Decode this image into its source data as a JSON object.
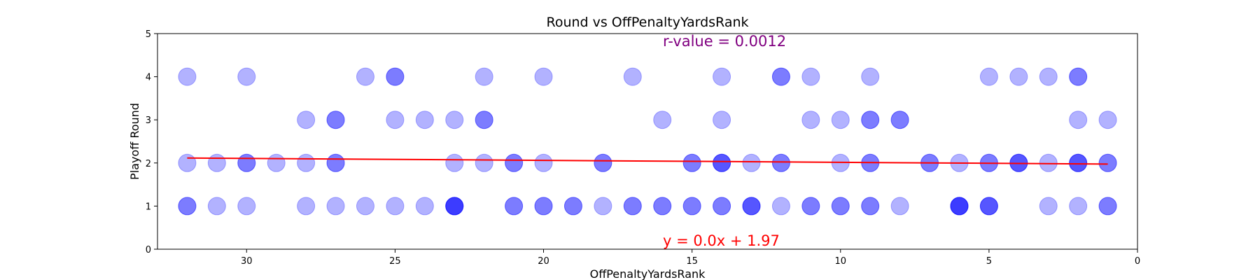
{
  "chart_data": {
    "type": "scatter",
    "title": "Round vs OffPenaltyYardsRank",
    "xlabel": "OffPenaltyYardsRank",
    "ylabel": "Playoff Round",
    "xlim": [
      33,
      0
    ],
    "ylim": [
      0,
      5
    ],
    "x_inverted": true,
    "xticks": [
      30,
      25,
      20,
      15,
      10,
      5,
      0
    ],
    "yticks": [
      0,
      1,
      2,
      3,
      4,
      5
    ],
    "grid": false,
    "point_color": "#0000ff",
    "line_color": "#ff0000",
    "points": [
      {
        "x": 32,
        "y": 4
      },
      {
        "x": 30,
        "y": 4
      },
      {
        "x": 26,
        "y": 4
      },
      {
        "x": 25,
        "y": 4
      },
      {
        "x": 25,
        "y": 4
      },
      {
        "x": 22,
        "y": 4
      },
      {
        "x": 20,
        "y": 4
      },
      {
        "x": 17,
        "y": 4
      },
      {
        "x": 14,
        "y": 4
      },
      {
        "x": 12,
        "y": 4
      },
      {
        "x": 12,
        "y": 4
      },
      {
        "x": 11,
        "y": 4
      },
      {
        "x": 9,
        "y": 4
      },
      {
        "x": 5,
        "y": 4
      },
      {
        "x": 4,
        "y": 4
      },
      {
        "x": 3,
        "y": 4
      },
      {
        "x": 2,
        "y": 4
      },
      {
        "x": 2,
        "y": 4
      },
      {
        "x": 28,
        "y": 3
      },
      {
        "x": 27,
        "y": 3
      },
      {
        "x": 27,
        "y": 3
      },
      {
        "x": 25,
        "y": 3
      },
      {
        "x": 24,
        "y": 3
      },
      {
        "x": 23,
        "y": 3
      },
      {
        "x": 22,
        "y": 3
      },
      {
        "x": 22,
        "y": 3
      },
      {
        "x": 16,
        "y": 3
      },
      {
        "x": 14,
        "y": 3
      },
      {
        "x": 11,
        "y": 3
      },
      {
        "x": 10,
        "y": 3
      },
      {
        "x": 9,
        "y": 3
      },
      {
        "x": 9,
        "y": 3
      },
      {
        "x": 8,
        "y": 3
      },
      {
        "x": 8,
        "y": 3
      },
      {
        "x": 2,
        "y": 3
      },
      {
        "x": 1,
        "y": 3
      },
      {
        "x": 32,
        "y": 2
      },
      {
        "x": 31,
        "y": 2
      },
      {
        "x": 30,
        "y": 2
      },
      {
        "x": 30,
        "y": 2
      },
      {
        "x": 29,
        "y": 2
      },
      {
        "x": 28,
        "y": 2
      },
      {
        "x": 27,
        "y": 2
      },
      {
        "x": 27,
        "y": 2
      },
      {
        "x": 23,
        "y": 2
      },
      {
        "x": 22,
        "y": 2
      },
      {
        "x": 21,
        "y": 2
      },
      {
        "x": 21,
        "y": 2
      },
      {
        "x": 20,
        "y": 2
      },
      {
        "x": 18,
        "y": 2
      },
      {
        "x": 18,
        "y": 2
      },
      {
        "x": 15,
        "y": 2
      },
      {
        "x": 15,
        "y": 2
      },
      {
        "x": 14,
        "y": 2
      },
      {
        "x": 14,
        "y": 2
      },
      {
        "x": 14,
        "y": 2
      },
      {
        "x": 13,
        "y": 2
      },
      {
        "x": 12,
        "y": 2
      },
      {
        "x": 12,
        "y": 2
      },
      {
        "x": 10,
        "y": 2
      },
      {
        "x": 9,
        "y": 2
      },
      {
        "x": 9,
        "y": 2
      },
      {
        "x": 7,
        "y": 2
      },
      {
        "x": 7,
        "y": 2
      },
      {
        "x": 6,
        "y": 2
      },
      {
        "x": 5,
        "y": 2
      },
      {
        "x": 5,
        "y": 2
      },
      {
        "x": 4,
        "y": 2
      },
      {
        "x": 4,
        "y": 2
      },
      {
        "x": 4,
        "y": 2
      },
      {
        "x": 3,
        "y": 2
      },
      {
        "x": 2,
        "y": 2
      },
      {
        "x": 2,
        "y": 2
      },
      {
        "x": 2,
        "y": 2
      },
      {
        "x": 1,
        "y": 2
      },
      {
        "x": 1,
        "y": 2
      },
      {
        "x": 32,
        "y": 1
      },
      {
        "x": 32,
        "y": 1
      },
      {
        "x": 31,
        "y": 1
      },
      {
        "x": 30,
        "y": 1
      },
      {
        "x": 28,
        "y": 1
      },
      {
        "x": 27,
        "y": 1
      },
      {
        "x": 26,
        "y": 1
      },
      {
        "x": 25,
        "y": 1
      },
      {
        "x": 24,
        "y": 1
      },
      {
        "x": 23,
        "y": 1
      },
      {
        "x": 23,
        "y": 1
      },
      {
        "x": 23,
        "y": 1
      },
      {
        "x": 23,
        "y": 1
      },
      {
        "x": 21,
        "y": 1
      },
      {
        "x": 21,
        "y": 1
      },
      {
        "x": 20,
        "y": 1
      },
      {
        "x": 20,
        "y": 1
      },
      {
        "x": 19,
        "y": 1
      },
      {
        "x": 19,
        "y": 1
      },
      {
        "x": 18,
        "y": 1
      },
      {
        "x": 17,
        "y": 1
      },
      {
        "x": 17,
        "y": 1
      },
      {
        "x": 16,
        "y": 1
      },
      {
        "x": 16,
        "y": 1
      },
      {
        "x": 15,
        "y": 1
      },
      {
        "x": 15,
        "y": 1
      },
      {
        "x": 14,
        "y": 1
      },
      {
        "x": 14,
        "y": 1
      },
      {
        "x": 13,
        "y": 1
      },
      {
        "x": 13,
        "y": 1
      },
      {
        "x": 13,
        "y": 1
      },
      {
        "x": 12,
        "y": 1
      },
      {
        "x": 11,
        "y": 1
      },
      {
        "x": 11,
        "y": 1
      },
      {
        "x": 10,
        "y": 1
      },
      {
        "x": 10,
        "y": 1
      },
      {
        "x": 9,
        "y": 1
      },
      {
        "x": 9,
        "y": 1
      },
      {
        "x": 8,
        "y": 1
      },
      {
        "x": 6,
        "y": 1
      },
      {
        "x": 6,
        "y": 1
      },
      {
        "x": 6,
        "y": 1
      },
      {
        "x": 6,
        "y": 1
      },
      {
        "x": 5,
        "y": 1
      },
      {
        "x": 5,
        "y": 1
      },
      {
        "x": 5,
        "y": 1
      },
      {
        "x": 3,
        "y": 1
      },
      {
        "x": 2,
        "y": 1
      },
      {
        "x": 1,
        "y": 1
      },
      {
        "x": 1,
        "y": 1
      }
    ],
    "regression": {
      "x": [
        32,
        1
      ],
      "slope": 0.0045,
      "intercept": 1.97,
      "equation_label": "y = 0.0x + 1.97",
      "r_label": "r-value = 0.0012",
      "r_color": "#800080",
      "equation_color": "#ff0000"
    }
  }
}
